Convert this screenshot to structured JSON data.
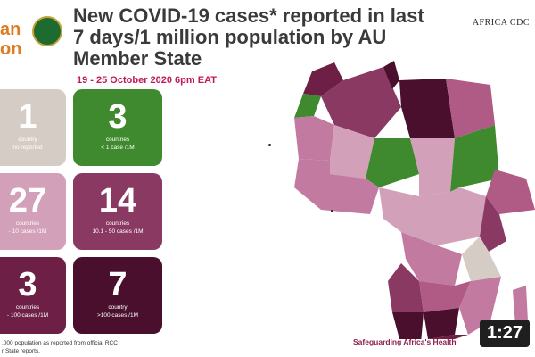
{
  "logo": {
    "text": "an\non"
  },
  "title": "New COVID-19 cases* reported in last 7 days/1 million population by AU Member State",
  "date_range": "19 - 25 October 2020 6pm EAT",
  "brand": "AFRICA CDC",
  "cards": [
    {
      "value": "1",
      "line1": "country",
      "line2": "no reported"
    },
    {
      "value": "3",
      "line1": "countries",
      "line2": "< 1 case /1M"
    },
    {
      "value": "27",
      "line1": "countries",
      "line2": "- 10 cases /1M"
    },
    {
      "value": "14",
      "line1": "countries",
      "line2": "10.1 - 50 cases /1M"
    },
    {
      "value": "3",
      "line1": "countries",
      "line2": "- 100 cases /1M"
    },
    {
      "value": "7",
      "line1": "country",
      "line2": ">100 cases /1M"
    }
  ],
  "footnote": {
    "line1": ",000 population as reported from official RCC",
    "line2": "r State reports."
  },
  "slogan": "Safeguarding Africa's Health",
  "video_time": "1:27",
  "colors": {
    "no_report": "#d6ccc6",
    "lt1": "#3f8a2e",
    "lt10": "#d2a0b8",
    "lt50": "#8a3a62",
    "lt100": "#6e1f45",
    "gt100": "#4a0f2c"
  }
}
